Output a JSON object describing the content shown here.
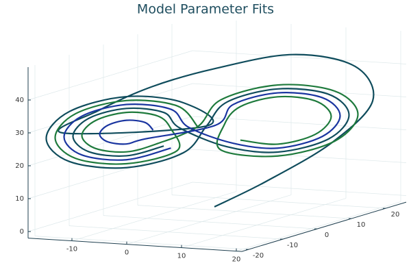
{
  "chart_data": {
    "type": "line3d",
    "title": "Model Parameter Fits",
    "xlim": [
      -18,
      21
    ],
    "ylim": [
      -22,
      26
    ],
    "zlim": [
      -2,
      50
    ],
    "xticks": [
      -10,
      0,
      10,
      20
    ],
    "yticks": [
      -20,
      -10,
      0,
      10,
      20
    ],
    "zticks": [
      0,
      10,
      20,
      30,
      40
    ],
    "grid": true,
    "series": [
      {
        "color": "#0f4c5c",
        "x": [
          1,
          6,
          13,
          18,
          16,
          9,
          1,
          -6,
          -12,
          -16,
          0.5,
          -2.1,
          -8.5,
          -14.9,
          -17.5,
          -14.9,
          -8.5,
          -2.1,
          0.5,
          2.8,
          8.5,
          14.2,
          16.5,
          14.2,
          8.5,
          2.8,
          -2.5,
          -4.3,
          -8.5,
          -12.7,
          -14.5,
          -12.7,
          -8.5,
          -4.3
        ],
        "y": [
          2,
          9,
          17,
          21,
          19,
          12,
          2,
          -5,
          -11,
          -15,
          0.5,
          -2.1,
          -8.5,
          -14.9,
          -17.5,
          -14.9,
          -8.5,
          -2.1,
          0.5,
          2.8,
          8.5,
          14.2,
          16.5,
          14.2,
          8.5,
          2.8,
          -2.5,
          -4.3,
          -8.5,
          -12.7,
          -14.5,
          -12.7,
          -8.5,
          -4.3
        ],
        "z": [
          2,
          8,
          18,
          30,
          41,
          46,
          44,
          40,
          34,
          28,
          27,
          34.6,
          37.8,
          34.6,
          27,
          19.4,
          16.2,
          19.4,
          27,
          33.8,
          36.6,
          33.8,
          27,
          20.2,
          17.4,
          20.2,
          27,
          32.1,
          34.2,
          32.1,
          27,
          21.9,
          19.8,
          21.9
        ]
      },
      {
        "color": "#1e7a3c",
        "x": [
          -0.5,
          -2.8,
          -8.5,
          -14.2,
          -16.5,
          -14.2,
          -8.5,
          -2.8,
          -3.5,
          -5,
          -8.5,
          -12,
          -13.5,
          -12,
          -8.5,
          -5,
          -0.5,
          2.1,
          8.5,
          14.9,
          17.5,
          14.9,
          8.5,
          2.1,
          2.5,
          4.3,
          8.5,
          12.7,
          14.5,
          12.7,
          8.5,
          4.3
        ],
        "y": [
          -0.5,
          -2.8,
          -8.5,
          -14.2,
          -16.5,
          -14.2,
          -8.5,
          -2.8,
          -3.5,
          -5,
          -8.5,
          -12,
          -13.5,
          -12,
          -8.5,
          -5,
          -0.5,
          2.1,
          8.5,
          14.9,
          17.5,
          14.9,
          8.5,
          2.1,
          2.5,
          4.3,
          8.5,
          12.7,
          14.5,
          12.7,
          8.5,
          4.3
        ],
        "z": [
          27,
          33.8,
          36.6,
          33.8,
          27,
          20.2,
          17.4,
          20.2,
          27,
          31.2,
          33,
          31.2,
          27,
          22.8,
          21,
          22.8,
          27,
          34.6,
          37.8,
          34.6,
          27,
          19.4,
          16.2,
          19.4,
          27,
          32.1,
          34.2,
          32.1,
          27,
          21.9,
          19.8,
          21.9
        ]
      },
      {
        "color": "#1a35a0",
        "x": [
          -5.5,
          -6.4,
          -8.5,
          -10.6,
          -11.5,
          -10.6,
          -8.5,
          -6.4,
          1.5,
          3.5,
          8.5,
          13.5,
          15.5,
          13.5,
          8.5,
          3.5,
          -1.5,
          -3.5,
          -8.5,
          -13.5,
          -15.5,
          -13.5,
          -8.5,
          -3.5
        ],
        "y": [
          -5.5,
          -6.4,
          -8.5,
          -10.6,
          -11.5,
          -10.6,
          -8.5,
          -6.4,
          1.5,
          3.5,
          8.5,
          13.5,
          15.5,
          13.5,
          8.5,
          3.5,
          -1.5,
          -3.5,
          -8.5,
          -13.5,
          -15.5,
          -13.5,
          -8.5,
          -3.5
        ],
        "z": [
          27,
          29.5,
          30.6,
          29.5,
          27,
          24.5,
          23.4,
          24.5,
          27,
          32.9,
          35.4,
          32.9,
          27,
          21.1,
          18.6,
          21.1,
          27,
          32.9,
          35.4,
          32.9,
          27,
          21.1,
          18.6,
          21.1
        ]
      }
    ]
  }
}
